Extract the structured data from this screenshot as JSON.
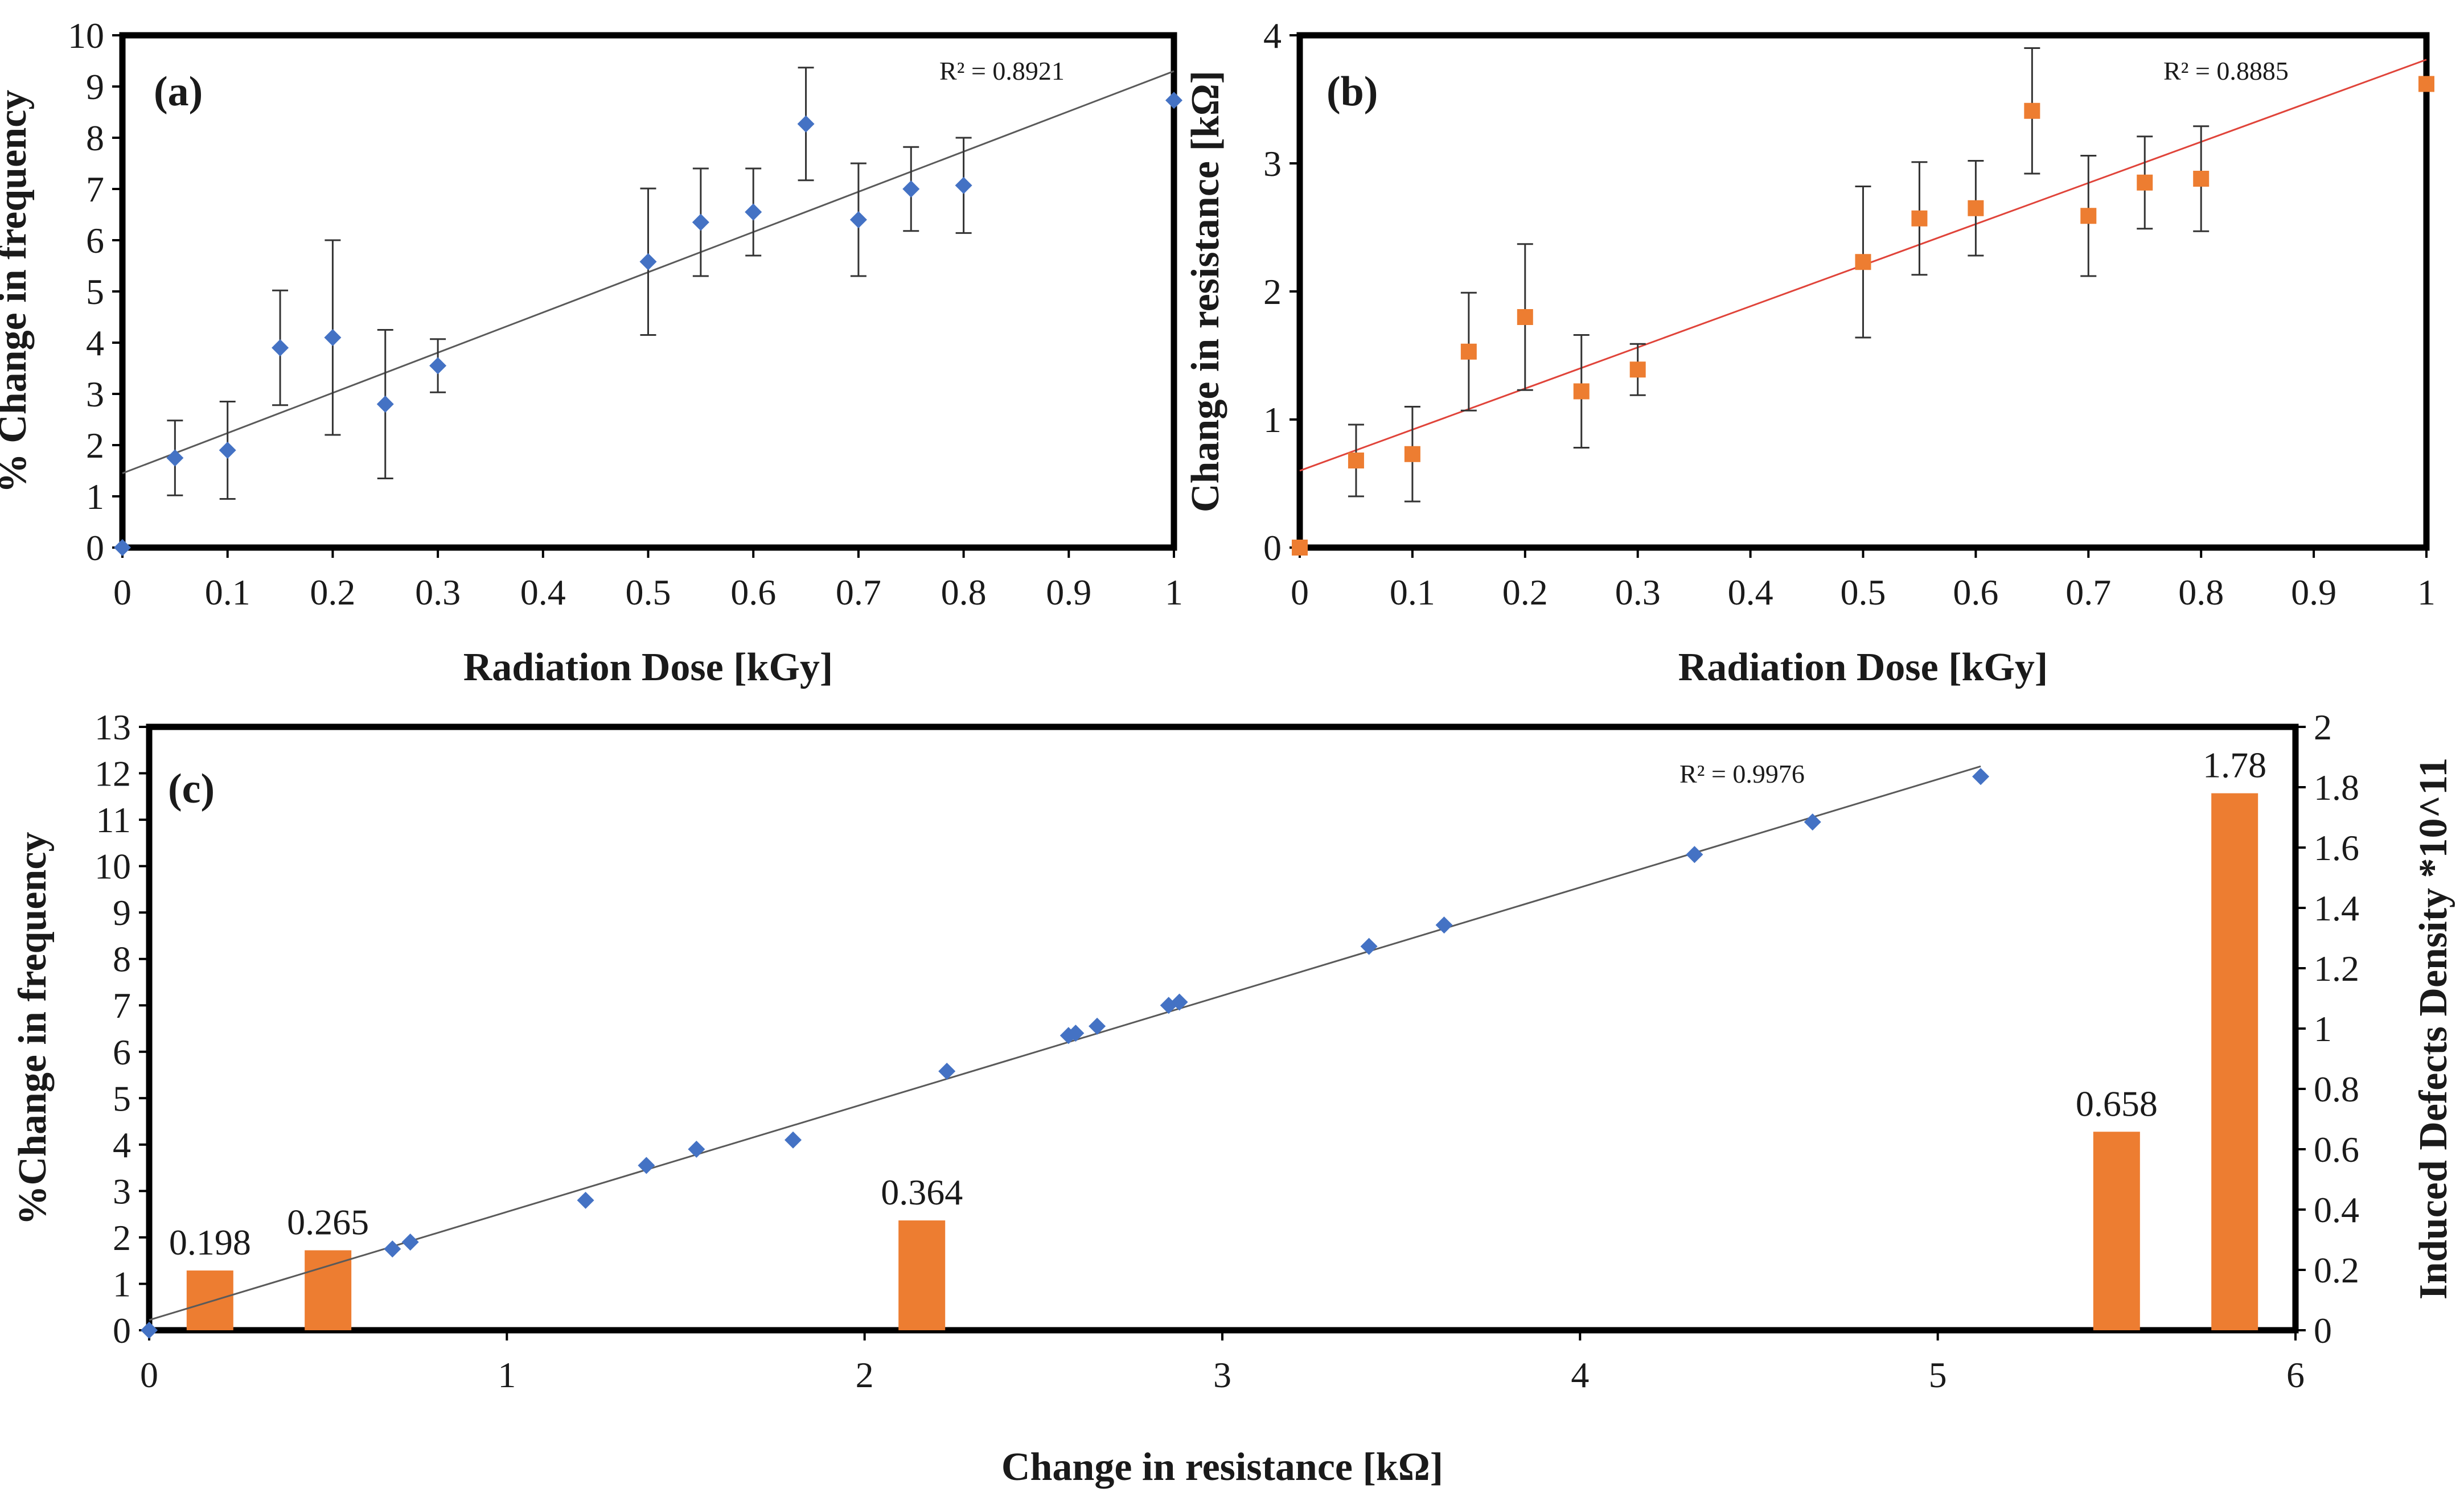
{
  "figure": {
    "label": "scatter plots with linear trendlines and bar overlay"
  },
  "colors": {
    "blue": "#4472C4",
    "orange": "#ED7D31",
    "trend_a": "#5a5a5a",
    "trend_b": "#E0443A",
    "error": "#333333"
  },
  "chart_data": [
    {
      "type": "scatter",
      "panel_label": "(a)",
      "xlabel": "Radiation Dose [kGy]",
      "ylabel": "% Change in frequency",
      "xlim": [
        0,
        1
      ],
      "ylim": [
        0,
        10
      ],
      "xticks": [
        "0",
        "0.1",
        "0.2",
        "0.3",
        "0.4",
        "0.5",
        "0.6",
        "0.7",
        "0.8",
        "0.9",
        "1"
      ],
      "yticks": [
        "0",
        "1",
        "2",
        "3",
        "4",
        "5",
        "6",
        "7",
        "8",
        "9",
        "10"
      ],
      "r2_label": "R² = 0.8921",
      "trendline": {
        "intercept": 1.45,
        "slope": 7.85
      },
      "marker": "diamond",
      "color": "#4472C4",
      "x": [
        0,
        0.05,
        0.1,
        0.15,
        0.2,
        0.25,
        0.3,
        0.5,
        0.55,
        0.6,
        0.65,
        0.7,
        0.75,
        0.8,
        1.0
      ],
      "y": [
        0,
        1.75,
        1.9,
        3.9,
        4.1,
        2.8,
        3.55,
        5.58,
        6.35,
        6.55,
        8.27,
        6.4,
        7.0,
        7.07,
        8.73
      ],
      "err": [
        0,
        0.73,
        0.95,
        1.12,
        1.9,
        1.45,
        0.52,
        1.43,
        1.05,
        0.85,
        1.1,
        1.1,
        0.82,
        0.93,
        0
      ]
    },
    {
      "type": "scatter",
      "panel_label": "(b)",
      "xlabel": "Radiation Dose [kGy]",
      "ylabel": "Change in resistance [kΩ]",
      "xlim": [
        0,
        1
      ],
      "ylim": [
        0,
        4
      ],
      "xticks": [
        "0",
        "0.1",
        "0.2",
        "0.3",
        "0.4",
        "0.5",
        "0.6",
        "0.7",
        "0.8",
        "0.9",
        "1"
      ],
      "yticks": [
        "0",
        "1",
        "2",
        "3",
        "4"
      ],
      "r2_label": "R² = 0.8885",
      "trendline": {
        "intercept": 0.6,
        "slope": 3.21
      },
      "marker": "square",
      "color": "#ED7D31",
      "x": [
        0,
        0.05,
        0.1,
        0.15,
        0.2,
        0.25,
        0.3,
        0.5,
        0.55,
        0.6,
        0.65,
        0.7,
        0.75,
        0.8,
        1.0
      ],
      "y": [
        0,
        0.68,
        0.73,
        1.53,
        1.8,
        1.22,
        1.39,
        2.23,
        2.57,
        2.65,
        3.41,
        2.59,
        2.85,
        2.88,
        3.62
      ],
      "err": [
        0,
        0.28,
        0.37,
        0.46,
        0.57,
        0.44,
        0.2,
        0.59,
        0.44,
        0.37,
        0.49,
        0.47,
        0.36,
        0.41,
        0
      ]
    },
    {
      "type": "scatter_bar",
      "panel_label": "(c)",
      "xlabel": "Change in resistance [kΩ]",
      "ylabel": "%Change in frequency",
      "y2label": "Induced Defects Density *10^11",
      "xlim": [
        0,
        6
      ],
      "ylim": [
        0,
        13
      ],
      "y2lim": [
        0,
        2
      ],
      "xticks": [
        "0",
        "1",
        "2",
        "3",
        "4",
        "5",
        "6"
      ],
      "yticks": [
        "0",
        "1",
        "2",
        "3",
        "4",
        "5",
        "6",
        "7",
        "8",
        "9",
        "10",
        "11",
        "12",
        "13"
      ],
      "y2ticks": [
        "0",
        "0.2",
        "0.4",
        "0.6",
        "0.8",
        "1",
        "1.2",
        "1.4",
        "1.6",
        "1.8",
        "2"
      ],
      "r2_label": "R² = 0.9976",
      "trendline": {
        "intercept": 0.22,
        "slope": 2.33,
        "x_end": 5.12
      },
      "marker": "diamond",
      "color": "#4472C4",
      "x": [
        0,
        0.68,
        0.73,
        1.22,
        1.39,
        1.53,
        1.8,
        2.23,
        2.57,
        2.59,
        2.65,
        2.85,
        2.88,
        3.41,
        3.62,
        4.32,
        4.65,
        5.12
      ],
      "y": [
        0,
        1.75,
        1.9,
        2.8,
        3.55,
        3.9,
        4.1,
        5.58,
        6.35,
        6.4,
        6.55,
        7.0,
        7.07,
        8.27,
        8.73,
        10.25,
        10.95,
        11.93
      ],
      "bars": {
        "color": "#ED7D31",
        "x": [
          0.17,
          0.5,
          2.16,
          5.5,
          5.83
        ],
        "values": [
          0.198,
          0.265,
          0.364,
          0.658,
          1.78
        ],
        "labels": [
          "0.198",
          "0.265",
          "0.364",
          "0.658",
          "1.78"
        ]
      }
    }
  ]
}
